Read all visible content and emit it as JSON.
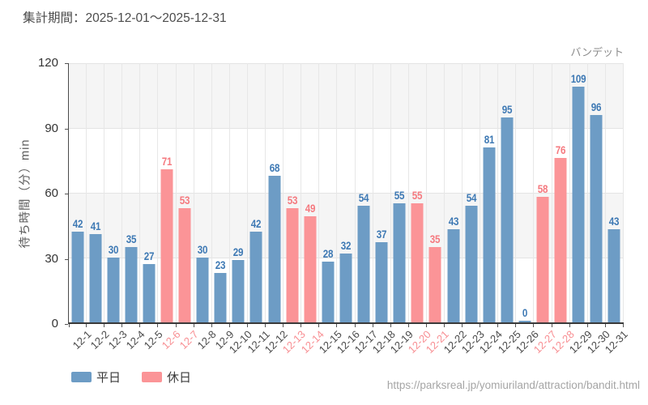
{
  "header": {
    "title": "集計期間：2025-12-01～2025-12-31"
  },
  "chart": {
    "attraction_label": "バンデット",
    "y_axis_title": "待ち時間（分）min"
  },
  "legend": [
    {
      "label": "平日",
      "color": "#6d9cc5"
    },
    {
      "label": "休日",
      "color": "#fb9497"
    }
  ],
  "footer": {
    "url": "https://parksreal.jp/yomiuriland/attraction/bandit.html"
  },
  "chart_data": {
    "type": "bar",
    "title": "集計期間：2025-12-01～2025-12-31",
    "xlabel": "",
    "ylabel": "待ち時間（分）min",
    "ylim": [
      0,
      120
    ],
    "yticks": [
      0,
      30,
      60,
      90,
      120
    ],
    "grid": "horizontal-bands and vertical category lines",
    "legend_position": "bottom-left",
    "categories": [
      "12-1",
      "12-2",
      "12-3",
      "12-4",
      "12-5",
      "12-6",
      "12-7",
      "12-8",
      "12-9",
      "12-10",
      "12-11",
      "12-12",
      "12-13",
      "12-14",
      "12-15",
      "12-16",
      "12-17",
      "12-18",
      "12-19",
      "12-20",
      "12-21",
      "12-22",
      "12-23",
      "12-24",
      "12-25",
      "12-26",
      "12-27",
      "12-28",
      "12-29",
      "12-30",
      "12-31"
    ],
    "values": [
      42,
      41,
      30,
      35,
      27,
      71,
      53,
      30,
      23,
      29,
      42,
      68,
      53,
      49,
      28,
      32,
      54,
      37,
      55,
      55,
      35,
      43,
      54,
      81,
      95,
      0,
      58,
      76,
      109,
      96,
      43
    ],
    "day_types": [
      "weekday",
      "weekday",
      "weekday",
      "weekday",
      "weekday",
      "holiday",
      "holiday",
      "weekday",
      "weekday",
      "weekday",
      "weekday",
      "weekday",
      "holiday",
      "holiday",
      "weekday",
      "weekday",
      "weekday",
      "weekday",
      "weekday",
      "holiday",
      "holiday",
      "weekday",
      "weekday",
      "weekday",
      "weekday",
      "weekday",
      "holiday",
      "holiday",
      "weekday",
      "weekday",
      "weekday"
    ],
    "series": [
      {
        "name": "平日",
        "type_key": "weekday",
        "bar_color": "#6d9cc5",
        "value_label_color": "#3e79b4",
        "tick_label_color": "#4a4a4a"
      },
      {
        "name": "休日",
        "type_key": "holiday",
        "bar_color": "#fb9497",
        "value_label_color": "#f5797f",
        "tick_label_color": "#f88f93"
      }
    ]
  }
}
